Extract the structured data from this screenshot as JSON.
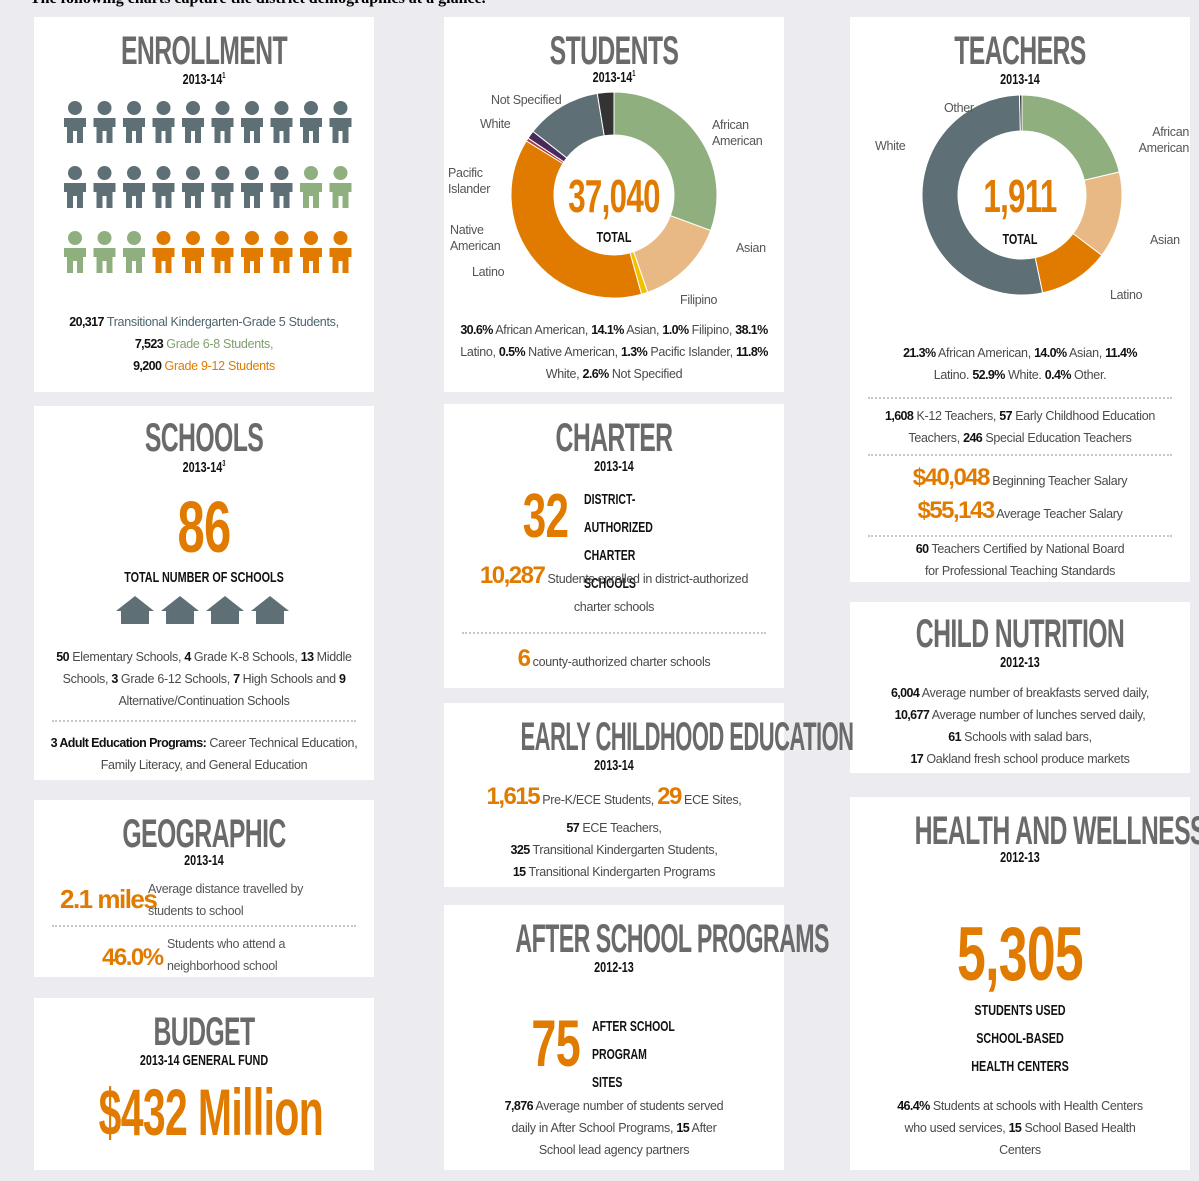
{
  "intro": "The following charts capture the district demographics at a glance.",
  "enrollment": {
    "title": "ENROLLMENT",
    "year": "2013-14",
    "note": "1",
    "lines": [
      {
        "number": "20,317",
        "text": "Transitional Kindergarten-Grade 5 Students,"
      },
      {
        "number": "7,523",
        "text": "Grade 6-8 Students,"
      },
      {
        "number": "9,200",
        "text": "Grade 9-12 Students"
      }
    ]
  },
  "students": {
    "title": "STUDENTS",
    "year": "2013-14",
    "note": "1",
    "total": "37,040",
    "total_label": "TOTAL",
    "segments": [
      {
        "name": "African American",
        "value": 30.6,
        "label": "30.6%",
        "color": "#8fb07e"
      },
      {
        "name": "Asian",
        "value": 14.1,
        "label": "14.1%",
        "color": "#e8b984"
      },
      {
        "name": "Filipino",
        "value": 1.0,
        "label": "1.0%",
        "color": "#f2c200"
      },
      {
        "name": "Latino",
        "value": 38.1,
        "label": "38.1%",
        "color": "#e07b00"
      },
      {
        "name": "Native American",
        "value": 0.5,
        "label": "0.5%",
        "color": "#b03a3a"
      },
      {
        "name": "Pacific Islander",
        "value": 1.3,
        "label": "1.3%",
        "color": "#4a2a5a"
      },
      {
        "name": "White",
        "value": 11.8,
        "label": "11.8%",
        "color": "#5e7076"
      },
      {
        "name": "Not Specified",
        "value": 2.6,
        "label": "2.6%",
        "color": "#333333"
      }
    ],
    "summary_text": [
      "African American,",
      "Asian,",
      "Filipino,",
      "Latino,",
      "Native American,",
      "Pacific Islander,",
      "White,",
      "Not Specified"
    ]
  },
  "teachers": {
    "title": "TEACHERS",
    "year": "2013-14",
    "total": "1,911",
    "total_label": "TOTAL",
    "segments": [
      {
        "name": "African American",
        "value": 21.3,
        "label": "21.3%",
        "color": "#8fb07e"
      },
      {
        "name": "Asian",
        "value": 14.0,
        "label": "14.0%",
        "color": "#e8b984"
      },
      {
        "name": "Latino",
        "value": 11.4,
        "label": "11.4%",
        "color": "#e07b00"
      },
      {
        "name": "White",
        "value": 52.9,
        "label": "52.9%",
        "color": "#5e7076"
      },
      {
        "name": "Other",
        "value": 0.4,
        "label": "0.4%",
        "color": "#333333"
      }
    ],
    "summary_text": [
      "African American,",
      "Asian,",
      "Latino.",
      "White.",
      "Other."
    ],
    "staff": [
      {
        "number": "1,608",
        "text": "K-12 Teachers,"
      },
      {
        "number": "57",
        "text": "Early Childhood Education Teachers,"
      },
      {
        "number": "246",
        "text": "Special Education Teachers"
      }
    ],
    "salaries": [
      {
        "amount": "$40,048",
        "text": "Beginning Teacher Salary"
      },
      {
        "amount": "$55,143",
        "text": "Average Teacher Salary"
      }
    ],
    "certified": {
      "number": "60",
      "text": "Teachers Certified by National Board for Professional Teaching Standards"
    }
  },
  "schools": {
    "title": "SCHOOLS",
    "year": "2013-14",
    "note": "3",
    "total": "86",
    "total_label": "TOTAL NUMBER OF SCHOOLS",
    "types": [
      {
        "number": "50",
        "text": "Elementary Schools,"
      },
      {
        "number": "4",
        "text": "Grade K-8 Schools,"
      },
      {
        "number": "13",
        "text": "Middle Schools,"
      },
      {
        "number": "3",
        "text": "Grade 6-12 Schools,"
      },
      {
        "number": "7",
        "text": "High Schools and"
      },
      {
        "number": "9",
        "text": "Alternative/Continuation Schools"
      }
    ],
    "adult": {
      "lead": "3 Adult Education Programs:",
      "text": "Career Technical Education, Family Literacy, and General Education"
    }
  },
  "charter": {
    "title": "CHARTER",
    "year": "2013-14",
    "count": "32",
    "count_label": "DISTRICT-AUTHORIZED CHARTER SCHOOLS",
    "enrolled": {
      "number": "10,287",
      "text": "Students enrolled in district-authorized charter schools"
    },
    "county": {
      "number": "6",
      "text": "county-authorized charter schools"
    }
  },
  "nutrition": {
    "title": "CHILD NUTRITION",
    "year": "2012-13",
    "items": [
      {
        "number": "6,004",
        "text": "Average number of breakfasts served daily,"
      },
      {
        "number": "10,677",
        "text": "Average number of lunches served daily,"
      },
      {
        "number": "61",
        "text": "Schools with salad bars,"
      },
      {
        "number": "17",
        "text": "Oakland fresh school produce markets"
      }
    ]
  },
  "geographic": {
    "title": "GEOGRAPHIC",
    "year": "2013-14",
    "items": [
      {
        "number": "2.1 miles",
        "text": "Average distance travelled by students to school"
      },
      {
        "number": "46.0%",
        "text": "Students who attend a neighborhood school"
      }
    ]
  },
  "ece": {
    "title": "EARLY CHILDHOOD EDUCATION",
    "year": "2013-14",
    "items": [
      {
        "number": "1,615",
        "text": "Pre-K/ECE Students,"
      },
      {
        "number": "29",
        "text": "ECE Sites,"
      },
      {
        "number": "57",
        "text": "ECE Teachers,"
      },
      {
        "number": "325",
        "text": "Transitional Kindergarten Students,"
      },
      {
        "number": "15",
        "text": "Transitional Kindergarten Programs"
      }
    ]
  },
  "health": {
    "title": "HEALTH AND WELLNESS",
    "year": "2012-13",
    "count": "5,305",
    "count_label": "STUDENTS USED SCHOOL-BASED HEALTH CENTERS",
    "items": [
      {
        "number": "46.4%",
        "text": "Students at schools with Health Centers who used services,"
      },
      {
        "number": "15",
        "text": "School Based Health Centers"
      }
    ]
  },
  "budget": {
    "title": "BUDGET",
    "subtitle": "2013-14 GENERAL FUND",
    "amount": "$432 Million"
  },
  "after_school": {
    "title": "AFTER SCHOOL PROGRAMS",
    "year": "2012-13",
    "count": "75",
    "count_label": "AFTER SCHOOL PROGRAM SITES",
    "items": [
      {
        "number": "7,876",
        "text": "Average number of students served daily in After School Programs,"
      },
      {
        "number": "15",
        "text": "After School lead agency partners"
      }
    ]
  }
}
